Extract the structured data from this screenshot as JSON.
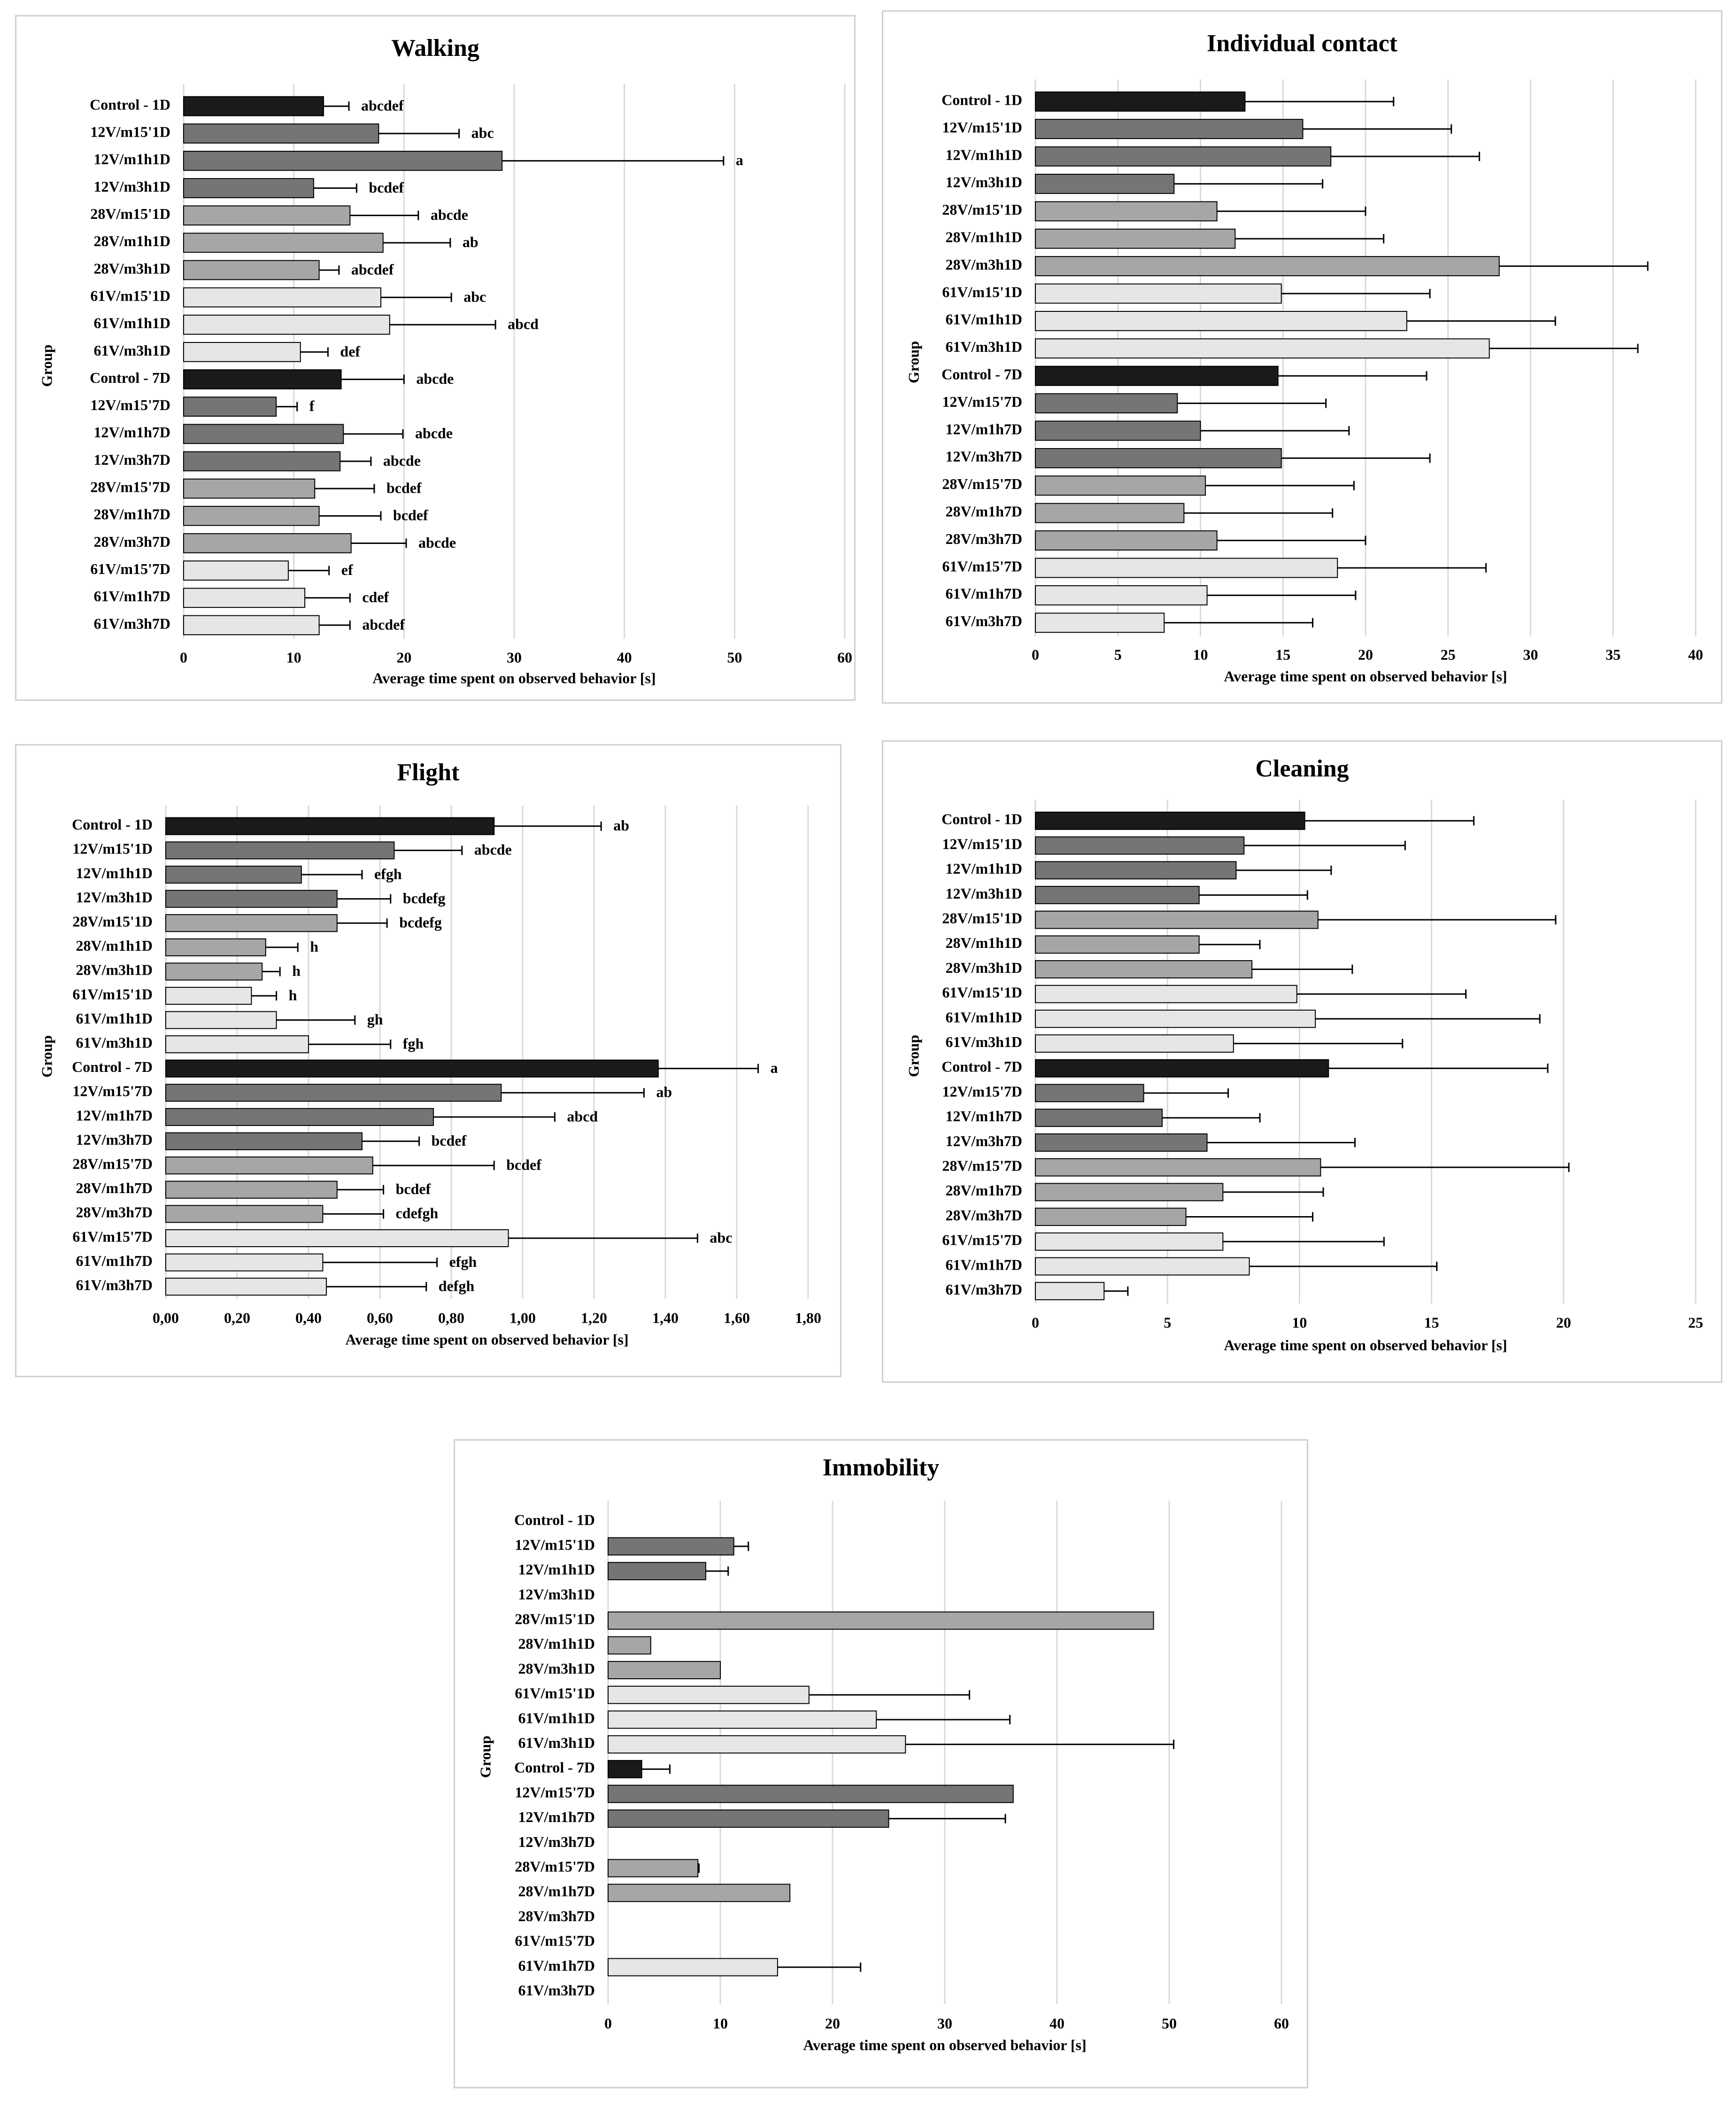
{
  "chart_data": [
    {
      "type": "bar",
      "orientation": "horizontal",
      "title": "Walking",
      "xlabel": "Average time spent on observed behavior [s]",
      "ylabel": "Group",
      "xlim": [
        0,
        60
      ],
      "xticks": [
        0,
        10,
        20,
        30,
        40,
        50,
        60
      ],
      "xtick_labels": [
        "0",
        "10",
        "20",
        "30",
        "40",
        "50",
        "60"
      ],
      "grid": "vertical",
      "categories": [
        "Control - 1D",
        "12V/m15'1D",
        "12V/m1h1D",
        "12V/m3h1D",
        "28V/m15'1D",
        "28V/m1h1D",
        "28V/m3h1D",
        "61V/m15'1D",
        "61V/m1h1D",
        "61V/m3h1D",
        "Control - 7D",
        "12V/m15'7D",
        "12V/m1h7D",
        "12V/m3h7D",
        "28V/m15'7D",
        "28V/m1h7D",
        "28V/m3h7D",
        "61V/m15'7D",
        "61V/m1h7D",
        "61V/m3h7D"
      ],
      "values": [
        12.7,
        17.7,
        28.9,
        11.8,
        15.1,
        18.1,
        12.3,
        17.9,
        18.7,
        10.6,
        14.3,
        8.4,
        14.5,
        14.2,
        11.9,
        12.3,
        15.2,
        9.5,
        11.0,
        12.3
      ],
      "errors": [
        2.3,
        7.3,
        20.1,
        3.9,
        6.2,
        6.1,
        1.8,
        6.4,
        9.6,
        2.5,
        5.7,
        1.9,
        5.4,
        2.8,
        5.4,
        5.6,
        5.0,
        3.7,
        4.1,
        2.8
      ],
      "annotations": [
        "abcdef",
        "abc",
        "a",
        "bcdef",
        "abcde",
        "ab",
        "abcdef",
        "abc",
        "abcd",
        "def",
        "abcde",
        "f",
        "abcde",
        "abcde",
        "bcdef",
        "bcdef",
        "abcde",
        "ef",
        "cdef",
        "abcdef"
      ]
    },
    {
      "type": "bar",
      "orientation": "horizontal",
      "title": "Individual contact",
      "xlabel": "Average time spent on observed behavior [s]",
      "ylabel": "Group",
      "xlim": [
        0,
        40
      ],
      "xticks": [
        0,
        5,
        10,
        15,
        20,
        25,
        30,
        35,
        40
      ],
      "xtick_labels": [
        "0",
        "5",
        "10",
        "15",
        "20",
        "25",
        "30",
        "35",
        "40"
      ],
      "grid": "vertical",
      "categories": [
        "Control - 1D",
        "12V/m15'1D",
        "12V/m1h1D",
        "12V/m3h1D",
        "28V/m15'1D",
        "28V/m1h1D",
        "28V/m3h1D",
        "61V/m15'1D",
        "61V/m1h1D",
        "61V/m3h1D",
        "Control - 7D",
        "12V/m15'7D",
        "12V/m1h7D",
        "12V/m3h7D",
        "28V/m15'7D",
        "28V/m1h7D",
        "28V/m3h7D",
        "61V/m15'7D",
        "61V/m1h7D",
        "61V/m3h7D"
      ],
      "values": [
        12.7,
        16.2,
        17.9,
        8.4,
        11.0,
        12.1,
        28.1,
        14.9,
        22.5,
        27.5,
        14.7,
        8.6,
        10.0,
        14.9,
        10.3,
        9.0,
        11.0,
        18.3,
        10.4,
        7.8
      ],
      "errors": [
        9.0,
        9.0,
        9.0,
        9.0,
        9.0,
        9.0,
        9.0,
        9.0,
        9.0,
        9.0,
        9.0,
        9.0,
        9.0,
        9.0,
        9.0,
        9.0,
        9.0,
        9.0,
        9.0,
        9.0
      ],
      "annotations": []
    },
    {
      "type": "bar",
      "orientation": "horizontal",
      "title": "Flight",
      "xlabel": "Average time spent on observed behavior [s]",
      "ylabel": "Group",
      "xlim": [
        0,
        1.8
      ],
      "xticks": [
        0,
        0.2,
        0.4,
        0.6,
        0.8,
        1.0,
        1.2,
        1.4,
        1.6,
        1.8
      ],
      "xtick_labels": [
        "0,00",
        "0,20",
        "0,40",
        "0,60",
        "0,80",
        "1,00",
        "1,20",
        "1,40",
        "1,60",
        "1,80"
      ],
      "grid": "vertical",
      "categories": [
        "Control - 1D",
        "12V/m15'1D",
        "12V/m1h1D",
        "12V/m3h1D",
        "28V/m15'1D",
        "28V/m1h1D",
        "28V/m3h1D",
        "61V/m15'1D",
        "61V/m1h1D",
        "61V/m3h1D",
        "Control - 7D",
        "12V/m15'7D",
        "12V/m1h7D",
        "12V/m3h7D",
        "28V/m15'7D",
        "28V/m1h7D",
        "28V/m3h7D",
        "61V/m15'7D",
        "61V/m1h7D",
        "61V/m3h7D"
      ],
      "values": [
        0.92,
        0.64,
        0.38,
        0.48,
        0.48,
        0.28,
        0.27,
        0.24,
        0.31,
        0.4,
        1.38,
        0.94,
        0.75,
        0.55,
        0.58,
        0.48,
        0.44,
        0.96,
        0.44,
        0.45
      ],
      "errors": [
        0.3,
        0.19,
        0.17,
        0.15,
        0.14,
        0.09,
        0.05,
        0.07,
        0.22,
        0.23,
        0.28,
        0.4,
        0.34,
        0.16,
        0.34,
        0.13,
        0.17,
        0.53,
        0.32,
        0.28
      ],
      "annotations": [
        "ab",
        "abcde",
        "efgh",
        "bcdefg",
        "bcdefg",
        "h",
        "h",
        "h",
        "gh",
        "fgh",
        "a",
        "ab",
        "abcd",
        "bcdef",
        "bcdef",
        "bcdef",
        "cdefgh",
        "abc",
        "efgh",
        "defgh"
      ]
    },
    {
      "type": "bar",
      "orientation": "horizontal",
      "title": "Cleaning",
      "xlabel": "Average time spent on observed behavior [s]",
      "ylabel": "Group",
      "xlim": [
        0,
        25
      ],
      "xticks": [
        0,
        5,
        10,
        15,
        20,
        25
      ],
      "xtick_labels": [
        "0",
        "5",
        "10",
        "15",
        "20",
        "25"
      ],
      "grid": "vertical",
      "categories": [
        "Control - 1D",
        "12V/m15'1D",
        "12V/m1h1D",
        "12V/m3h1D",
        "28V/m15'1D",
        "28V/m1h1D",
        "28V/m3h1D",
        "61V/m15'1D",
        "61V/m1h1D",
        "61V/m3h1D",
        "Control - 7D",
        "12V/m15'7D",
        "12V/m1h7D",
        "12V/m3h7D",
        "28V/m15'7D",
        "28V/m1h7D",
        "28V/m3h7D",
        "61V/m15'7D",
        "61V/m1h7D",
        "61V/m3h7D"
      ],
      "values": [
        10.2,
        7.9,
        7.6,
        6.2,
        10.7,
        6.2,
        8.2,
        9.9,
        10.6,
        7.5,
        11.1,
        4.1,
        4.8,
        6.5,
        10.8,
        7.1,
        5.7,
        7.1,
        8.1,
        2.6
      ],
      "errors": [
        6.4,
        6.1,
        3.6,
        4.1,
        9.0,
        2.3,
        3.8,
        6.4,
        8.5,
        6.4,
        8.3,
        3.2,
        3.7,
        5.6,
        9.4,
        3.8,
        4.8,
        6.1,
        7.1,
        0.9
      ],
      "annotations": []
    },
    {
      "type": "bar",
      "orientation": "horizontal",
      "title": "Immobility",
      "xlabel": "Average time spent on observed behavior [s]",
      "ylabel": "Group",
      "xlim": [
        0,
        60
      ],
      "xticks": [
        0,
        10,
        20,
        30,
        40,
        50,
        60
      ],
      "xtick_labels": [
        "0",
        "10",
        "20",
        "30",
        "40",
        "50",
        "60"
      ],
      "grid": "vertical",
      "categories": [
        "Control - 1D",
        "12V/m15'1D",
        "12V/m1h1D",
        "12V/m3h1D",
        "28V/m15'1D",
        "28V/m1h1D",
        "28V/m3h1D",
        "61V/m15'1D",
        "61V/m1h1D",
        "61V/m3h1D",
        "Control - 7D",
        "12V/m15'7D",
        "12V/m1h7D",
        "12V/m3h7D",
        "28V/m15'7D",
        "28V/m1h7D",
        "28V/m3h7D",
        "61V/m15'7D",
        "61V/m1h7D",
        "61V/m3h7D"
      ],
      "values": [
        0,
        11.2,
        8.7,
        0,
        48.6,
        3.8,
        10.0,
        17.9,
        23.9,
        26.5,
        3.0,
        36.1,
        25.0,
        0,
        8.0,
        16.2,
        0,
        0,
        15.1,
        0
      ],
      "errors": [
        0,
        1.3,
        2.0,
        0,
        0,
        0,
        0,
        14.3,
        11.9,
        23.9,
        2.5,
        0,
        10.4,
        0,
        0.1,
        0,
        0,
        0,
        7.4,
        0
      ],
      "annotations": []
    }
  ]
}
